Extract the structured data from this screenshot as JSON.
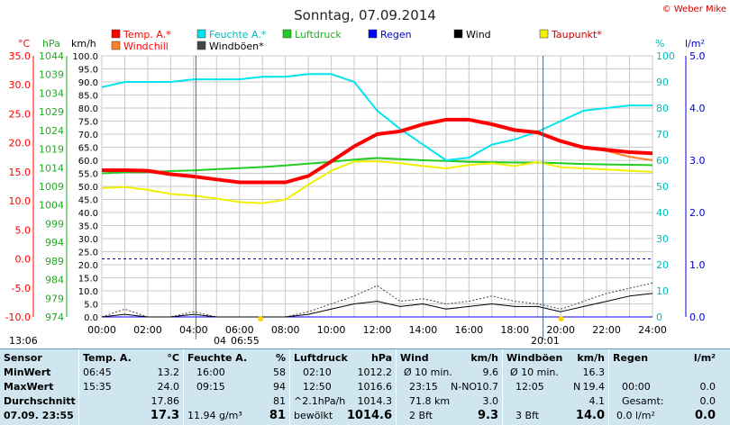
{
  "header": {
    "title": "Sonntag, 07.09.2014",
    "credit": "© Weber Mike"
  },
  "colors": {
    "temp": "#ff0000",
    "humidity": "#00e5ee",
    "pressure": "#22cc22",
    "rain": "#0000ff",
    "wind": "#000000",
    "dewpoint": "#f0f000",
    "windchill": "#ff7f27",
    "gust": "#444444",
    "panel_bg": "#cfe6f1"
  },
  "legend": [
    {
      "label": "Temp. A.*",
      "color": "#ff0000"
    },
    {
      "label": "Feuchte A.*",
      "color": "#00e5ee"
    },
    {
      "label": "Luftdruck",
      "color": "#22cc22"
    },
    {
      "label": "Regen",
      "color": "#0000ff"
    },
    {
      "label": "Wind",
      "color": "#000000"
    },
    {
      "label": "Taupunkt*",
      "color": "#f0f000"
    },
    {
      "label": "Windchill",
      "color": "#ff7f27"
    },
    {
      "label": "Windböen*",
      "color": "#444444"
    }
  ],
  "axes": {
    "temp_unit": "°C",
    "pressure_unit": "hPa",
    "wind_unit": "km/h",
    "humidity_unit": "%",
    "rain_unit": "l/m²",
    "temp_ticks": [
      "35.0",
      "30.0",
      "25.0",
      "20.0",
      "15.0",
      "10.0",
      "5.0",
      "0.0",
      "-5.0",
      "-10.0"
    ],
    "pressure_ticks": [
      "1044",
      "1039",
      "1034",
      "1029",
      "1024",
      "1019",
      "1014",
      "1009",
      "1004",
      "999",
      "994",
      "989",
      "984",
      "979",
      "974"
    ],
    "wind_ticks": [
      "100.0",
      "95.0",
      "90.0",
      "85.0",
      "80.0",
      "75.0",
      "70.0",
      "65.0",
      "60.0",
      "55.0",
      "50.0",
      "45.0",
      "40.0",
      "35.0",
      "30.0",
      "25.0",
      "20.0",
      "15.0",
      "10.0",
      "5.0",
      "0.0"
    ],
    "humidity_ticks": [
      "100",
      "90",
      "80",
      "70",
      "60",
      "50",
      "40",
      "30",
      "20",
      "10",
      "0"
    ],
    "rain_ticks": [
      "5.0",
      "4.0",
      "3.0",
      "2.0",
      "1.0",
      "0.0"
    ],
    "time_ticks": [
      "00:00",
      "02:00",
      "04:00",
      "06:00",
      "08:00",
      "10:00",
      "12:00",
      "14:00",
      "16:00",
      "18:00",
      "20:00",
      "22:00",
      "24:00"
    ],
    "sunrise_left": "13:06",
    "sunrise": "06:55",
    "moon_time": "04",
    "sunset": "20:01"
  },
  "chart_data": {
    "type": "line",
    "x": [
      0,
      1,
      2,
      3,
      4,
      5,
      6,
      7,
      8,
      9,
      10,
      11,
      12,
      13,
      14,
      15,
      16,
      17,
      18,
      19,
      20,
      21,
      22,
      23,
      24
    ],
    "xlabel": "",
    "series": [
      {
        "name": "Temp. A.*",
        "unit": "°C",
        "values": [
          15.3,
          15.3,
          15.2,
          14.6,
          14.2,
          13.7,
          13.2,
          13.2,
          13.2,
          14.3,
          16.8,
          19.4,
          21.5,
          22.0,
          23.2,
          24.0,
          24.0,
          23.2,
          22.2,
          21.8,
          20.3,
          19.2,
          18.8,
          18.4,
          18.2
        ]
      },
      {
        "name": "Windchill",
        "values": [
          15.3,
          15.3,
          15.2,
          14.6,
          14.2,
          13.7,
          13.2,
          13.2,
          13.2,
          14.3,
          16.8,
          19.4,
          21.5,
          22.0,
          23.2,
          24.0,
          24.0,
          23.2,
          22.2,
          21.8,
          20.3,
          19.2,
          18.6,
          17.6,
          17.0
        ]
      },
      {
        "name": "Feuchte A.*",
        "unit": "%",
        "values": [
          88,
          90,
          90,
          90,
          91,
          91,
          91,
          92,
          92,
          93,
          93,
          90,
          79,
          72,
          66,
          60,
          61,
          66,
          68,
          71,
          75,
          79,
          80,
          81,
          81
        ]
      },
      {
        "name": "Luftdruck",
        "unit": "hPa",
        "values": [
          1012.5,
          1012.8,
          1012.8,
          1013.1,
          1013.3,
          1013.6,
          1013.9,
          1014.2,
          1014.6,
          1015.1,
          1015.6,
          1016.2,
          1016.6,
          1016.3,
          1016.0,
          1015.8,
          1015.6,
          1015.5,
          1015.4,
          1015.4,
          1015.2,
          1015.0,
          1014.9,
          1014.8,
          1014.7
        ]
      },
      {
        "name": "Taupunkt*",
        "unit": "°C",
        "values": [
          12.2,
          12.4,
          11.9,
          11.2,
          10.9,
          10.4,
          9.8,
          9.6,
          10.2,
          12.8,
          15.2,
          16.8,
          16.8,
          16.5,
          16.0,
          15.6,
          16.2,
          16.5,
          16.0,
          16.7,
          15.8,
          15.6,
          15.4,
          15.2,
          15.0
        ]
      },
      {
        "name": "Wind",
        "unit": "km/h",
        "values": [
          0,
          1,
          0,
          0,
          1,
          0,
          0,
          0,
          0,
          1,
          3,
          5,
          6,
          4,
          5,
          3,
          4,
          5,
          4,
          4,
          2,
          4,
          6,
          8,
          9
        ]
      },
      {
        "name": "Windböen*",
        "unit": "km/h",
        "values": [
          0,
          3,
          0,
          0,
          2,
          0,
          0,
          0,
          0,
          2,
          5,
          8,
          12,
          6,
          7,
          5,
          6,
          8,
          6,
          5,
          3,
          6,
          9,
          11,
          13
        ]
      },
      {
        "name": "Regen",
        "unit": "l/m²",
        "values": [
          0,
          0,
          0,
          0,
          0,
          0,
          0,
          0,
          0,
          0,
          0,
          0,
          0,
          0,
          0,
          0,
          0,
          0,
          0,
          0,
          0,
          0,
          0,
          0,
          0
        ]
      }
    ],
    "ylim_temp": [
      -10,
      35
    ],
    "ylim_pressure": [
      974,
      1044
    ],
    "ylim_wind": [
      0,
      100
    ],
    "ylim_humidity": [
      0,
      100
    ],
    "ylim_rain": [
      0,
      5
    ],
    "grid": true
  },
  "stats": {
    "sensor": {
      "h": "Sensor",
      "min": "MinWert",
      "max": "MaxWert",
      "avg": "Durchschnitt",
      "now": "07.09. 23:55"
    },
    "temp": {
      "h": "Temp. A.",
      "unit": "°C",
      "min_t": "06:45",
      "min_v": "13.2",
      "max_t": "15:35",
      "max_v": "24.0",
      "avg_v": "17.86",
      "now_v": "17.3"
    },
    "hum": {
      "h": "Feuchte A.",
      "unit": "%",
      "min_t": "16:00",
      "min_v": "58",
      "max_t": "09:15",
      "max_v": "94",
      "avg_v": "81",
      "now_l": "11.94 g/m³",
      "now_v": "81"
    },
    "press": {
      "h": "Luftdruck",
      "unit": "hPa",
      "min_t": "02:10",
      "min_v": "1012.2",
      "max_t": "12:50",
      "max_v": "1016.6",
      "avg_l": "^2.1hPa/h",
      "avg_v": "1014.3",
      "now_l": "bewölkt",
      "now_v": "1014.6"
    },
    "wind": {
      "h": "Wind",
      "unit": "km/h",
      "min_l": "Ø 10 min.",
      "min_v": "9.6",
      "max_t": "23:15",
      "max_dir": "N-NO",
      "max_v": "10.7",
      "avg_l": "71.8 km",
      "avg_v": "3.0",
      "now_l": "2 Bft",
      "now_v": "9.3"
    },
    "gust": {
      "h": "Windböen",
      "unit": "km/h",
      "min_l": "Ø 10 min.",
      "min_v": "16.3",
      "max_t": "12:05",
      "max_dir": "N",
      "max_v": "19.4",
      "avg_v": "4.1",
      "now_l": "3 Bft",
      "now_v": "14.0"
    },
    "rain": {
      "h": "Regen",
      "unit": "l/m²",
      "max_t": "00:00",
      "max_v": "0.0",
      "avg_l": "Gesamt:",
      "avg_v": "0.0",
      "now_l": "0.0 l/m²",
      "now_v": "0.0"
    }
  }
}
